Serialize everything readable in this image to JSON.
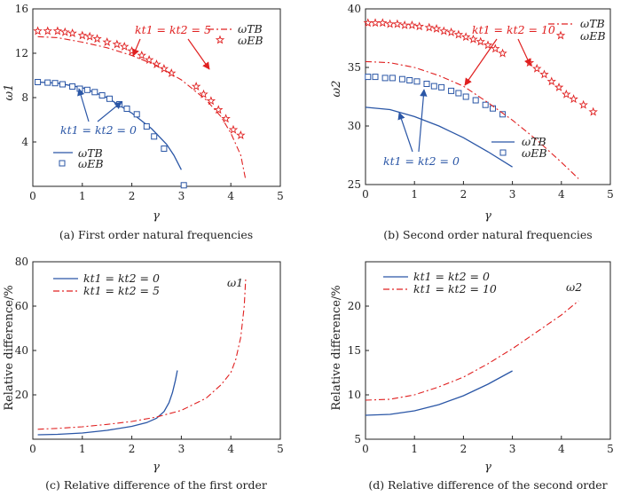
{
  "colors": {
    "blue": "#2a56a6",
    "red": "#e02020",
    "axis": "#222222"
  },
  "chart_data": [
    {
      "id": "a",
      "type": "line",
      "caption": "(a) First order natural frequencies",
      "xlabel": "γ",
      "ylabel": "ω1",
      "xlim": [
        0,
        5
      ],
      "ylim": [
        0,
        16
      ],
      "xticks": [
        "0",
        "1",
        "2",
        "3",
        "4",
        "5"
      ],
      "yticks": [
        "4",
        "8",
        "12",
        "16"
      ],
      "legend": [
        "ωTB",
        "ωEB"
      ],
      "series": [
        {
          "style": "blue-solid",
          "x": [
            0.1,
            0.5,
            1.0,
            1.5,
            2.0,
            2.4,
            2.7,
            2.85,
            3.0
          ],
          "y": [
            9.4,
            9.3,
            8.9,
            8.0,
            6.6,
            5.2,
            3.8,
            2.8,
            1.5
          ]
        },
        {
          "style": "blue-square",
          "x": [
            0.1,
            0.3,
            0.45,
            0.6,
            0.8,
            0.95,
            1.1,
            1.25,
            1.4,
            1.55,
            1.75,
            1.9,
            2.1,
            2.3,
            2.45,
            2.65,
            3.05
          ],
          "y": [
            9.4,
            9.35,
            9.3,
            9.2,
            9.0,
            8.8,
            8.7,
            8.5,
            8.2,
            7.9,
            7.4,
            7.0,
            6.5,
            5.4,
            4.5,
            3.4,
            0.1
          ]
        },
        {
          "style": "red-dashdot",
          "x": [
            0.1,
            0.5,
            1.0,
            1.5,
            2.0,
            2.5,
            3.0,
            3.5,
            3.8,
            4.0,
            4.2,
            4.3
          ],
          "y": [
            13.5,
            13.4,
            13.0,
            12.5,
            11.8,
            10.9,
            9.6,
            7.8,
            6.3,
            4.8,
            2.8,
            0.6
          ]
        },
        {
          "style": "red-star",
          "x": [
            0.1,
            0.3,
            0.5,
            0.65,
            0.8,
            1.0,
            1.15,
            1.3,
            1.5,
            1.7,
            1.85,
            2.0,
            2.2,
            2.35,
            2.5,
            2.65,
            2.8,
            3.3,
            3.45,
            3.6,
            3.75,
            3.9,
            4.05,
            4.2
          ],
          "y": [
            14.0,
            14.0,
            14.0,
            13.9,
            13.8,
            13.6,
            13.5,
            13.3,
            13.0,
            12.8,
            12.6,
            12.2,
            11.8,
            11.4,
            11.0,
            10.6,
            10.2,
            9.0,
            8.3,
            7.7,
            6.9,
            6.1,
            5.1,
            4.6
          ]
        }
      ],
      "annotations": [
        {
          "text": "kt1 = kt2 = 5",
          "color": "red"
        },
        {
          "text": "kt1 = kt2 = 0",
          "color": "blue"
        }
      ]
    },
    {
      "id": "b",
      "type": "line",
      "caption": "(b) Second order natural frequencies",
      "xlabel": "γ",
      "ylabel": "ω2",
      "xlim": [
        0,
        5
      ],
      "ylim": [
        25,
        40
      ],
      "xticks": [
        "0",
        "1",
        "2",
        "3",
        "4",
        "5"
      ],
      "yticks": [
        "25",
        "30",
        "35",
        "40"
      ],
      "legend_top": [
        "ωTB",
        "ωEB"
      ],
      "legend_bottom": [
        "ωTB",
        "ωEB"
      ],
      "series": [
        {
          "style": "blue-solid",
          "x": [
            0,
            0.5,
            1.0,
            1.5,
            2.0,
            2.5,
            3.0
          ],
          "y": [
            31.6,
            31.4,
            30.8,
            30.0,
            29.0,
            27.8,
            26.5
          ]
        },
        {
          "style": "blue-square",
          "x": [
            0.05,
            0.2,
            0.4,
            0.55,
            0.75,
            0.9,
            1.05,
            1.25,
            1.4,
            1.55,
            1.75,
            1.9,
            2.05,
            2.25,
            2.45,
            2.6,
            2.8
          ],
          "y": [
            34.2,
            34.2,
            34.1,
            34.1,
            34.0,
            33.9,
            33.8,
            33.6,
            33.4,
            33.3,
            33.0,
            32.8,
            32.5,
            32.2,
            31.8,
            31.5,
            31.0
          ]
        },
        {
          "style": "red-dashdot",
          "x": [
            0,
            0.5,
            1.0,
            1.5,
            2.0,
            2.5,
            3.0,
            3.5,
            4.0,
            4.35
          ],
          "y": [
            35.5,
            35.4,
            35.0,
            34.3,
            33.4,
            32.0,
            30.5,
            28.8,
            26.9,
            25.5
          ]
        },
        {
          "style": "red-star",
          "x": [
            0.05,
            0.2,
            0.35,
            0.5,
            0.65,
            0.8,
            0.95,
            1.1,
            1.3,
            1.45,
            1.6,
            1.75,
            1.9,
            2.05,
            2.2,
            2.35,
            2.5,
            2.65,
            2.8,
            3.35,
            3.5,
            3.65,
            3.8,
            3.95,
            4.1,
            4.25,
            4.45,
            4.65
          ],
          "y": [
            38.8,
            38.8,
            38.8,
            38.7,
            38.7,
            38.6,
            38.6,
            38.5,
            38.4,
            38.3,
            38.1,
            38.0,
            37.8,
            37.6,
            37.4,
            37.2,
            36.9,
            36.6,
            36.2,
            35.4,
            34.9,
            34.4,
            33.8,
            33.3,
            32.7,
            32.3,
            31.8,
            31.2
          ]
        }
      ],
      "annotations": [
        {
          "text": "kt1 = kt2 = 10",
          "color": "red"
        },
        {
          "text": "kt1 = kt2 = 0",
          "color": "blue"
        }
      ]
    },
    {
      "id": "c",
      "type": "line",
      "caption": "(c) Relative difference of the first order",
      "xlabel": "γ",
      "ylabel": "Relative difference/%",
      "xlim": [
        0,
        5
      ],
      "ylim": [
        0,
        80
      ],
      "xticks": [
        "0",
        "1",
        "2",
        "3",
        "4",
        "5"
      ],
      "yticks": [
        "20",
        "40",
        "60",
        "80"
      ],
      "legend": [
        "kt1 = kt2 = 0",
        "kt1 = kt2 = 5"
      ],
      "curve_label": "ω1",
      "series": [
        {
          "name": "kt1 = kt2 = 0",
          "style": "blue-solid",
          "x": [
            0.1,
            0.5,
            1.0,
            1.5,
            2.0,
            2.3,
            2.5,
            2.65,
            2.75,
            2.82,
            2.88,
            2.92
          ],
          "y": [
            2,
            2.2,
            2.8,
            4.0,
            5.8,
            7.5,
            9.5,
            12.5,
            16.5,
            21.0,
            26.5,
            31.0
          ]
        },
        {
          "name": "kt1 = kt2 = 5",
          "style": "red-dashdot",
          "x": [
            0.1,
            0.5,
            1.0,
            1.5,
            2.0,
            2.5,
            3.0,
            3.5,
            3.8,
            4.0,
            4.1,
            4.2,
            4.27,
            4.3
          ],
          "y": [
            4.5,
            4.9,
            5.6,
            6.7,
            8.0,
            10.0,
            13.0,
            18.5,
            24.5,
            30.0,
            36.0,
            46.0,
            60.0,
            72.0
          ]
        }
      ]
    },
    {
      "id": "d",
      "type": "line",
      "caption": "(d) Relative difference of the second order",
      "xlabel": "γ",
      "ylabel": "Relative difference/%",
      "xlim": [
        0,
        5
      ],
      "ylim": [
        5,
        25
      ],
      "xticks": [
        "0",
        "1",
        "2",
        "3",
        "4",
        "5"
      ],
      "yticks": [
        "5",
        "10",
        "15",
        "20"
      ],
      "legend": [
        "kt1 = kt2 = 0",
        "kt1 = kt2 = 10"
      ],
      "curve_label": "ω2",
      "series": [
        {
          "name": "kt1 = kt2 = 0",
          "style": "blue-solid",
          "x": [
            0,
            0.5,
            1.0,
            1.5,
            2.0,
            2.5,
            3.0
          ],
          "y": [
            7.7,
            7.8,
            8.2,
            8.9,
            9.9,
            11.2,
            12.7
          ]
        },
        {
          "name": "kt1 = kt2 = 10",
          "style": "red-dashdot",
          "x": [
            0,
            0.5,
            1.0,
            1.5,
            2.0,
            2.5,
            3.0,
            3.5,
            4.0,
            4.35
          ],
          "y": [
            9.4,
            9.5,
            10.0,
            10.9,
            12.0,
            13.5,
            15.2,
            17.1,
            19.0,
            20.6
          ]
        }
      ]
    }
  ]
}
